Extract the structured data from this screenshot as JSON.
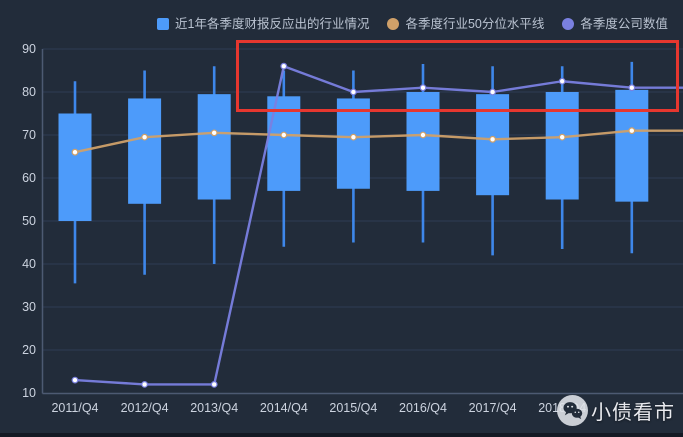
{
  "legend": {
    "items": [
      {
        "label": "近1年各季度财报反应出的行业情况",
        "marker": "square",
        "color": "#4d9bfa"
      },
      {
        "label": "各季度行业50分位水平线",
        "marker": "circle",
        "color": "#cfa069"
      },
      {
        "label": "各季度公司数值",
        "marker": "circle",
        "color": "#7a80e0"
      }
    ]
  },
  "watermark": {
    "text": "小债看市",
    "icon": "wechat-icon"
  },
  "colors": {
    "background": "#222c3a",
    "gridline": "#2f3b54",
    "axis_line": "#4d5a72",
    "tick_label": "#ccd3df",
    "box_fill": "#4d9bfa",
    "whisker": "#3e87ea",
    "median_line": "#cfa069",
    "company_line": "#7a80e0",
    "point_fill": "#ffffff",
    "annotation": "#e6372f"
  },
  "chart_data": {
    "type": "candlestick+line",
    "title": "",
    "xlabel": "",
    "ylabel": "",
    "ylim": [
      10,
      90
    ],
    "yticks": [
      10,
      20,
      30,
      40,
      50,
      60,
      70,
      80,
      90
    ],
    "grid": "horizontal-only",
    "legend_position": "top",
    "categories": [
      "2011/Q4",
      "2012/Q4",
      "2013/Q4",
      "2014/Q4",
      "2015/Q4",
      "2016/Q4",
      "2017/Q4",
      "2018/Q4",
      ""
    ],
    "series": [
      {
        "name": "近1年各季度财报反应出的行业情况",
        "type": "candlestick",
        "note": "values are [low, q1, q3, high]",
        "values": [
          [
            35.5,
            50,
            75,
            82.5
          ],
          [
            37.5,
            54,
            78.5,
            85
          ],
          [
            40,
            55,
            79.5,
            86
          ],
          [
            44,
            57,
            79,
            85
          ],
          [
            45,
            57.5,
            78.5,
            85
          ],
          [
            45,
            57,
            80,
            86.5
          ],
          [
            42,
            56,
            79.5,
            86
          ],
          [
            43.5,
            55,
            80,
            86
          ],
          [
            42.5,
            54.5,
            80.5,
            87
          ]
        ]
      },
      {
        "name": "各季度行业50分位水平线",
        "type": "line",
        "values": [
          66,
          69.5,
          70.5,
          70,
          69.5,
          70,
          69,
          69.5,
          71
        ]
      },
      {
        "name": "各季度公司数值",
        "type": "line",
        "values": [
          13,
          12,
          12,
          86,
          80,
          81,
          80,
          82.5,
          81
        ]
      }
    ],
    "annotation": {
      "shape": "rectangle",
      "color": "#e6372f",
      "covers": "upper band of 2014/Q4 through last quarter, values ~76-92"
    }
  }
}
